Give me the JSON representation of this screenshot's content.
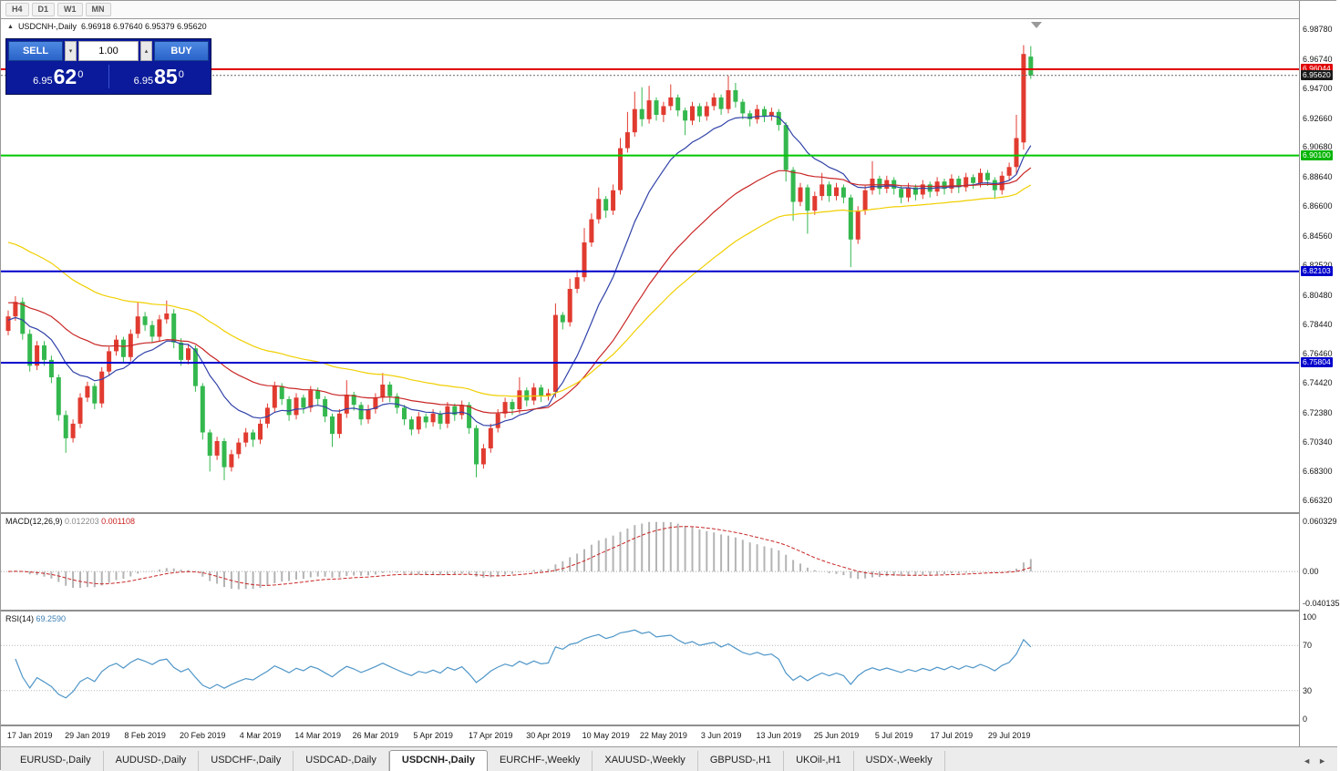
{
  "toolbar": {
    "timeframes": [
      "H4",
      "D1",
      "W1",
      "MN"
    ]
  },
  "header": {
    "arrow": "▲",
    "symbol": "USDCNH-,Daily",
    "ohlc": "6.96918 6.97640 6.95379 6.95620"
  },
  "trade_panel": {
    "sell_label": "SELL",
    "buy_label": "BUY",
    "volume": "1.00",
    "vol_down_icon": "▾",
    "vol_up_icon": "▴",
    "sell_price": {
      "base": "6.95",
      "big": "62",
      "sup": "0"
    },
    "buy_price": {
      "base": "6.95",
      "big": "85",
      "sup": "0"
    }
  },
  "chart_data": {
    "type": "candlestick",
    "symbol": "USDCNH-,Daily",
    "colors": {
      "up": "#e13b30",
      "down": "#34b84e"
    },
    "price_range": {
      "max": 6.995,
      "min": 6.655
    },
    "price_ticks": [
      "6.98780",
      "6.96740",
      "6.94700",
      "6.92660",
      "6.90680",
      "6.88640",
      "6.86600",
      "6.84560",
      "6.82520",
      "6.80480",
      "6.78440",
      "6.76460",
      "6.74420",
      "6.72380",
      "6.70340",
      "6.68300",
      "6.66320"
    ],
    "price_labels": [
      {
        "text": "6.96044",
        "value": 6.96044,
        "color": "#e00000"
      },
      {
        "text": "6.95620",
        "value": 6.9562,
        "color": "#1a1a1a"
      },
      {
        "text": "6.90100",
        "value": 6.901,
        "color": "#00b400"
      },
      {
        "text": "6.82103",
        "value": 6.82103,
        "color": "#0000cc"
      },
      {
        "text": "6.75804",
        "value": 6.75804,
        "color": "#0000cc"
      }
    ],
    "hlines": [
      {
        "value": 6.96044,
        "color": "#e00000",
        "width": 2,
        "dash": ""
      },
      {
        "value": 6.9562,
        "color": "#666666",
        "width": 1,
        "dash": "2 2"
      },
      {
        "value": 6.901,
        "color": "#00c800",
        "width": 2,
        "dash": ""
      },
      {
        "value": 6.82103,
        "color": "#0000cc",
        "width": 2,
        "dash": ""
      },
      {
        "value": 6.75804,
        "color": "#0000cc",
        "width": 2,
        "dash": ""
      }
    ],
    "moving_averages": [
      {
        "period": 13,
        "color": "#3142a8",
        "seed": 6.787
      },
      {
        "period": 34,
        "color": "#c92626",
        "seed": 6.8
      },
      {
        "period": 55,
        "color": "#f0cf00",
        "seed": 6.843
      }
    ],
    "x_labels": [
      {
        "label": "17 Jan 2019",
        "i": 3
      },
      {
        "label": "29 Jan 2019",
        "i": 11
      },
      {
        "label": "8 Feb 2019",
        "i": 19
      },
      {
        "label": "20 Feb 2019",
        "i": 27
      },
      {
        "label": "4 Mar 2019",
        "i": 35
      },
      {
        "label": "14 Mar 2019",
        "i": 43
      },
      {
        "label": "26 Mar 2019",
        "i": 51
      },
      {
        "label": "5 Apr 2019",
        "i": 59
      },
      {
        "label": "17 Apr 2019",
        "i": 67
      },
      {
        "label": "30 Apr 2019",
        "i": 75
      },
      {
        "label": "10 May 2019",
        "i": 83
      },
      {
        "label": "22 May 2019",
        "i": 91
      },
      {
        "label": "3 Jun 2019",
        "i": 99
      },
      {
        "label": "13 Jun 2019",
        "i": 107
      },
      {
        "label": "25 Jun 2019",
        "i": 115
      },
      {
        "label": "5 Jul 2019",
        "i": 123
      },
      {
        "label": "17 Jul 2019",
        "i": 131
      },
      {
        "label": "29 Jul 2019",
        "i": 139
      }
    ],
    "candles": [
      [
        6.78,
        6.794,
        6.777,
        6.79
      ],
      [
        6.79,
        6.804,
        6.787,
        6.8
      ],
      [
        6.8,
        6.803,
        6.774,
        6.778
      ],
      [
        6.778,
        6.781,
        6.752,
        6.756
      ],
      [
        6.756,
        6.773,
        6.753,
        6.77
      ],
      [
        6.77,
        6.773,
        6.756,
        6.76
      ],
      [
        6.76,
        6.763,
        6.744,
        6.748
      ],
      [
        6.748,
        6.75,
        6.718,
        6.722
      ],
      [
        6.722,
        6.725,
        6.696,
        6.706
      ],
      [
        6.706,
        6.719,
        6.703,
        6.716
      ],
      [
        6.716,
        6.737,
        6.713,
        6.734
      ],
      [
        6.734,
        6.745,
        6.731,
        6.742
      ],
      [
        6.742,
        6.744,
        6.726,
        6.73
      ],
      [
        6.73,
        6.755,
        6.727,
        6.752
      ],
      [
        6.752,
        6.769,
        6.749,
        6.766
      ],
      [
        6.766,
        6.777,
        6.763,
        6.774
      ],
      [
        6.774,
        6.776,
        6.758,
        6.762
      ],
      [
        6.762,
        6.781,
        6.759,
        6.778
      ],
      [
        6.778,
        6.8,
        6.775,
        6.79
      ],
      [
        6.79,
        6.793,
        6.78,
        6.784
      ],
      [
        6.784,
        6.787,
        6.772,
        6.776
      ],
      [
        6.776,
        6.791,
        6.773,
        6.788
      ],
      [
        6.788,
        6.801,
        6.785,
        6.792
      ],
      [
        6.792,
        6.795,
        6.768,
        6.772
      ],
      [
        6.772,
        6.775,
        6.756,
        6.76
      ],
      [
        6.76,
        6.771,
        6.757,
        6.768
      ],
      [
        6.768,
        6.77,
        6.738,
        6.742
      ],
      [
        6.742,
        6.744,
        6.705,
        6.71
      ],
      [
        6.71,
        6.712,
        6.683,
        6.694
      ],
      [
        6.694,
        6.707,
        6.691,
        6.704
      ],
      [
        6.704,
        6.706,
        6.677,
        6.686
      ],
      [
        6.686,
        6.698,
        6.683,
        6.695
      ],
      [
        6.695,
        6.706,
        6.692,
        6.703
      ],
      [
        6.703,
        6.713,
        6.7,
        6.71
      ],
      [
        6.71,
        6.712,
        6.7,
        6.705
      ],
      [
        6.705,
        6.719,
        6.702,
        6.716
      ],
      [
        6.716,
        6.73,
        6.713,
        6.727
      ],
      [
        6.727,
        6.745,
        6.724,
        6.742
      ],
      [
        6.742,
        6.744,
        6.729,
        6.733
      ],
      [
        6.733,
        6.735,
        6.718,
        6.722
      ],
      [
        6.722,
        6.737,
        6.719,
        6.734
      ],
      [
        6.734,
        6.736,
        6.723,
        6.727
      ],
      [
        6.727,
        6.742,
        6.724,
        6.739
      ],
      [
        6.739,
        6.741,
        6.729,
        6.733
      ],
      [
        6.733,
        6.735,
        6.717,
        6.721
      ],
      [
        6.721,
        6.723,
        6.7,
        6.709
      ],
      [
        6.709,
        6.726,
        6.706,
        6.723
      ],
      [
        6.723,
        6.746,
        6.72,
        6.736
      ],
      [
        6.736,
        6.738,
        6.725,
        6.729
      ],
      [
        6.729,
        6.731,
        6.715,
        6.719
      ],
      [
        6.719,
        6.729,
        6.716,
        6.726
      ],
      [
        6.726,
        6.737,
        6.723,
        6.734
      ],
      [
        6.734,
        6.751,
        6.731,
        6.743
      ],
      [
        6.743,
        6.745,
        6.731,
        6.735
      ],
      [
        6.735,
        6.737,
        6.723,
        6.727
      ],
      [
        6.727,
        6.729,
        6.715,
        6.719
      ],
      [
        6.719,
        6.721,
        6.708,
        6.712
      ],
      [
        6.712,
        6.724,
        6.709,
        6.721
      ],
      [
        6.721,
        6.723,
        6.713,
        6.717
      ],
      [
        6.717,
        6.726,
        6.714,
        6.723
      ],
      [
        6.723,
        6.725,
        6.712,
        6.716
      ],
      [
        6.716,
        6.731,
        6.713,
        6.728
      ],
      [
        6.728,
        6.73,
        6.718,
        6.722
      ],
      [
        6.722,
        6.732,
        6.719,
        6.729
      ],
      [
        6.729,
        6.731,
        6.709,
        6.713
      ],
      [
        6.713,
        6.715,
        6.679,
        6.688
      ],
      [
        6.688,
        6.702,
        6.685,
        6.699
      ],
      [
        6.699,
        6.716,
        6.696,
        6.713
      ],
      [
        6.713,
        6.726,
        6.71,
        6.723
      ],
      [
        6.723,
        6.734,
        6.72,
        6.731
      ],
      [
        6.731,
        6.733,
        6.722,
        6.726
      ],
      [
        6.726,
        6.748,
        6.723,
        6.739
      ],
      [
        6.739,
        6.741,
        6.728,
        6.732
      ],
      [
        6.732,
        6.744,
        6.729,
        6.741
      ],
      [
        6.741,
        6.743,
        6.731,
        6.735
      ],
      [
        6.735,
        6.74,
        6.732,
        6.737
      ],
      [
        6.738,
        6.799,
        6.734,
        6.791
      ],
      [
        6.791,
        6.793,
        6.781,
        6.786
      ],
      [
        6.786,
        6.816,
        6.783,
        6.809
      ],
      [
        6.809,
        6.822,
        6.806,
        6.817
      ],
      [
        6.817,
        6.851,
        6.814,
        6.841
      ],
      [
        6.841,
        6.861,
        6.838,
        6.857
      ],
      [
        6.857,
        6.879,
        6.854,
        6.871
      ],
      [
        6.871,
        6.873,
        6.858,
        6.863
      ],
      [
        6.863,
        6.881,
        6.86,
        6.877
      ],
      [
        6.877,
        6.913,
        6.874,
        6.906
      ],
      [
        6.906,
        6.931,
        6.903,
        6.917
      ],
      [
        6.917,
        6.945,
        6.914,
        6.933
      ],
      [
        6.933,
        6.948,
        6.921,
        6.926
      ],
      [
        6.926,
        6.949,
        6.923,
        6.939
      ],
      [
        6.939,
        6.941,
        6.925,
        6.929
      ],
      [
        6.929,
        6.938,
        6.924,
        6.935
      ],
      [
        6.935,
        6.95,
        6.932,
        6.941
      ],
      [
        6.941,
        6.943,
        6.928,
        6.932
      ],
      [
        6.932,
        6.934,
        6.915,
        6.925
      ],
      [
        6.925,
        6.938,
        6.922,
        6.935
      ],
      [
        6.935,
        6.937,
        6.924,
        6.928
      ],
      [
        6.928,
        6.938,
        6.925,
        6.935
      ],
      [
        6.935,
        6.944,
        6.932,
        6.941
      ],
      [
        6.941,
        6.943,
        6.929,
        6.933
      ],
      [
        6.933,
        6.956,
        6.93,
        6.946
      ],
      [
        6.946,
        6.951,
        6.934,
        6.938
      ],
      [
        6.938,
        6.94,
        6.926,
        6.93
      ],
      [
        6.93,
        6.932,
        6.921,
        6.926
      ],
      [
        6.926,
        6.936,
        6.923,
        6.933
      ],
      [
        6.933,
        6.935,
        6.924,
        6.928
      ],
      [
        6.928,
        6.934,
        6.925,
        6.931
      ],
      [
        6.931,
        6.933,
        6.918,
        6.922
      ],
      [
        6.922,
        6.924,
        6.883,
        6.891
      ],
      [
        6.891,
        6.893,
        6.856,
        6.869
      ],
      [
        6.869,
        6.882,
        6.866,
        6.879
      ],
      [
        6.879,
        6.881,
        6.847,
        6.863
      ],
      [
        6.863,
        6.876,
        6.86,
        6.873
      ],
      [
        6.873,
        6.889,
        6.87,
        6.881
      ],
      [
        6.881,
        6.883,
        6.869,
        6.873
      ],
      [
        6.873,
        6.882,
        6.87,
        6.879
      ],
      [
        6.879,
        6.881,
        6.868,
        6.872
      ],
      [
        6.872,
        6.874,
        6.824,
        6.843
      ],
      [
        6.843,
        6.866,
        6.84,
        6.863
      ],
      [
        6.863,
        6.88,
        6.86,
        6.877
      ],
      [
        6.877,
        6.897,
        6.874,
        6.885
      ],
      [
        6.885,
        6.887,
        6.874,
        6.878
      ],
      [
        6.878,
        6.887,
        6.875,
        6.884
      ],
      [
        6.884,
        6.886,
        6.874,
        6.878
      ],
      [
        6.878,
        6.88,
        6.868,
        6.872
      ],
      [
        6.872,
        6.882,
        6.869,
        6.879
      ],
      [
        6.879,
        6.881,
        6.87,
        6.874
      ],
      [
        6.874,
        6.884,
        6.871,
        6.881
      ],
      [
        6.881,
        6.883,
        6.872,
        6.876
      ],
      [
        6.876,
        6.886,
        6.873,
        6.883
      ],
      [
        6.883,
        6.885,
        6.874,
        6.878
      ],
      [
        6.878,
        6.888,
        6.875,
        6.885
      ],
      [
        6.885,
        6.887,
        6.875,
        6.879
      ],
      [
        6.879,
        6.889,
        6.876,
        6.886
      ],
      [
        6.886,
        6.888,
        6.878,
        6.882
      ],
      [
        6.882,
        6.892,
        6.879,
        6.889
      ],
      [
        6.889,
        6.891,
        6.88,
        6.884
      ],
      [
        6.884,
        6.886,
        6.871,
        6.877
      ],
      [
        6.877,
        6.89,
        6.874,
        6.887
      ],
      [
        6.887,
        6.896,
        6.884,
        6.893
      ],
      [
        6.893,
        6.929,
        6.888,
        6.913
      ],
      [
        6.91,
        6.977,
        6.905,
        6.971
      ],
      [
        6.96918,
        6.9764,
        6.95379,
        6.9562
      ]
    ],
    "macd": {
      "title": "MACD(12,26,9)",
      "value_main": "0.012203",
      "value_signal": "0.001108",
      "params": {
        "fast": 12,
        "slow": 26,
        "signal": 9
      },
      "colors": {
        "histogram": "#b4b4b4",
        "signal": "#c92626"
      },
      "axis": {
        "max": 0.060329,
        "min": -0.040135,
        "max_label": "0.060329",
        "zero_label": "0.00",
        "min_label": "-0.040135"
      }
    },
    "rsi": {
      "title": "RSI(14)",
      "value": "69.2590",
      "period": 14,
      "color": "#4f96c8",
      "levels": [
        70,
        30
      ],
      "axis_labels": [
        {
          "text": "100",
          "value": 100
        },
        {
          "text": "70",
          "value": 70
        },
        {
          "text": "30",
          "value": 30
        },
        {
          "text": "0",
          "value": 0
        }
      ]
    }
  },
  "tabs": [
    {
      "label": "EURUSD-,Daily",
      "active": false
    },
    {
      "label": "AUDUSD-,Daily",
      "active": false
    },
    {
      "label": "USDCHF-,Daily",
      "active": false
    },
    {
      "label": "USDCAD-,Daily",
      "active": false
    },
    {
      "label": "USDCNH-,Daily",
      "active": true
    },
    {
      "label": "EURCHF-,Weekly",
      "active": false
    },
    {
      "label": "XAUUSD-,Weekly",
      "active": false
    },
    {
      "label": "GBPUSD-,H1",
      "active": false
    },
    {
      "label": "UKOil-,H1",
      "active": false
    },
    {
      "label": "USDX-,Weekly",
      "active": false
    }
  ],
  "tab_scroll": {
    "left": "◄",
    "right": "►"
  }
}
